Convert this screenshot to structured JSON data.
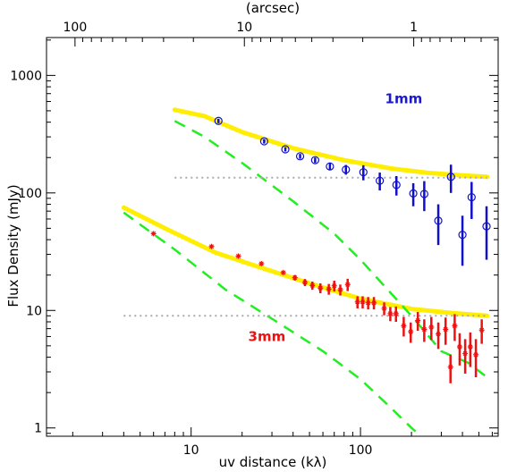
{
  "chart_data": {
    "type": "scatter",
    "title": "",
    "xlabel": "uv distance (kλ)",
    "ylabel": "Flux Density (mJy)",
    "x2label": "(arcsec)",
    "xscale": "log",
    "yscale": "log",
    "xlim": [
      1.4,
      650
    ],
    "ylim": [
      0.85,
      2100
    ],
    "x_ticks": [
      {
        "value": 10,
        "label": "10"
      },
      {
        "value": 100,
        "label": "100"
      }
    ],
    "y_ticks": [
      {
        "value": 1,
        "label": "1"
      },
      {
        "value": 10,
        "label": "10"
      },
      {
        "value": 100,
        "label": "100"
      },
      {
        "value": 1000,
        "label": "1000"
      }
    ],
    "top_ticks": [
      {
        "value": 100,
        "label": "100"
      },
      {
        "value": 10,
        "label": "10"
      },
      {
        "value": 1,
        "label": "1"
      }
    ],
    "annotations": [
      {
        "text": "1mm",
        "x": 180,
        "y": 580,
        "color": "#1a1acc"
      },
      {
        "text": "3mm",
        "x": 28,
        "y": 5.5,
        "color": "#ee1111"
      }
    ],
    "series": [
      {
        "label": "1mm",
        "marker": "open-circle",
        "color": "#1010cc",
        "points": [
          {
            "x": 14.5,
            "y": 410,
            "err": 18
          },
          {
            "x": 27,
            "y": 275,
            "err": 12
          },
          {
            "x": 36,
            "y": 235,
            "err": 10
          },
          {
            "x": 44,
            "y": 205,
            "err": 10
          },
          {
            "x": 54,
            "y": 190,
            "err": 10
          },
          {
            "x": 66,
            "y": 168,
            "err": 12
          },
          {
            "x": 82,
            "y": 158,
            "err": 15
          },
          {
            "x": 104,
            "y": 150,
            "err": 22
          },
          {
            "x": 130,
            "y": 127,
            "err": 22
          },
          {
            "x": 163,
            "y": 117,
            "err": 22
          },
          {
            "x": 205,
            "y": 99,
            "err": 22
          },
          {
            "x": 238,
            "y": 98,
            "err": 28
          },
          {
            "x": 288,
            "y": 58,
            "err": 22
          },
          {
            "x": 342,
            "y": 137,
            "err": 37
          },
          {
            "x": 400,
            "y": 44,
            "err": 20
          },
          {
            "x": 453,
            "y": 92,
            "err": 32
          },
          {
            "x": 555,
            "y": 52,
            "err": 25
          }
        ]
      },
      {
        "label": "3mm",
        "marker": "asterisk",
        "color": "#ee1111",
        "points": [
          {
            "x": 6,
            "y": 45,
            "err": 0
          },
          {
            "x": 13.2,
            "y": 35,
            "err": 0
          },
          {
            "x": 19,
            "y": 29,
            "err": 0
          },
          {
            "x": 26,
            "y": 25,
            "err": 0
          },
          {
            "x": 35,
            "y": 21,
            "err": 0
          },
          {
            "x": 41,
            "y": 19,
            "err": 1
          },
          {
            "x": 47,
            "y": 17.3,
            "err": 1.2
          },
          {
            "x": 52,
            "y": 16.3,
            "err": 1.3
          },
          {
            "x": 58,
            "y": 15.5,
            "err": 1.5
          },
          {
            "x": 65,
            "y": 15.2,
            "err": 1.6
          },
          {
            "x": 70,
            "y": 16.2,
            "err": 1.7
          },
          {
            "x": 76,
            "y": 15,
            "err": 1.6
          },
          {
            "x": 84,
            "y": 16.6,
            "err": 2
          },
          {
            "x": 96,
            "y": 11.8,
            "err": 1.4
          },
          {
            "x": 103,
            "y": 11.8,
            "err": 1.4
          },
          {
            "x": 111,
            "y": 11.6,
            "err": 1.4
          },
          {
            "x": 120,
            "y": 11.6,
            "err": 1.4
          },
          {
            "x": 138,
            "y": 10.4,
            "err": 1.3
          },
          {
            "x": 150,
            "y": 9.4,
            "err": 1.3
          },
          {
            "x": 162,
            "y": 9.4,
            "err": 1.4
          },
          {
            "x": 180,
            "y": 7.4,
            "err": 1.4
          },
          {
            "x": 198,
            "y": 6.6,
            "err": 1.3
          },
          {
            "x": 218,
            "y": 8.2,
            "err": 1.5
          },
          {
            "x": 238,
            "y": 6.9,
            "err": 1.5
          },
          {
            "x": 262,
            "y": 7.2,
            "err": 1.6
          },
          {
            "x": 288,
            "y": 6.3,
            "err": 1.6
          },
          {
            "x": 318,
            "y": 6.9,
            "err": 1.8
          },
          {
            "x": 340,
            "y": 3.3,
            "err": 0.9
          },
          {
            "x": 360,
            "y": 7.4,
            "err": 1.9
          },
          {
            "x": 385,
            "y": 4.9,
            "err": 1.5
          },
          {
            "x": 415,
            "y": 4.3,
            "err": 1.4
          },
          {
            "x": 445,
            "y": 4.9,
            "err": 1.6
          },
          {
            "x": 480,
            "y": 4.2,
            "err": 1.5
          },
          {
            "x": 520,
            "y": 6.8,
            "err": 1.6
          }
        ]
      }
    ],
    "lines": [
      {
        "label": "1mm model",
        "style": "solid-thick",
        "color": "#ffee00",
        "points": [
          [
            8,
            510
          ],
          [
            12,
            450
          ],
          [
            20,
            330
          ],
          [
            40,
            240
          ],
          [
            80,
            190
          ],
          [
            150,
            162
          ],
          [
            250,
            148
          ],
          [
            400,
            141
          ],
          [
            560,
            137
          ]
        ]
      },
      {
        "label": "3mm model",
        "style": "solid-thick",
        "color": "#ffee00",
        "points": [
          [
            4,
            75
          ],
          [
            7,
            50
          ],
          [
            14,
            31
          ],
          [
            25,
            23.5
          ],
          [
            50,
            17
          ],
          [
            100,
            12.6
          ],
          [
            200,
            10.3
          ],
          [
            350,
            9.5
          ],
          [
            560,
            9
          ]
        ]
      },
      {
        "label": "1mm extended component",
        "style": "dashed",
        "color": "#22ee22",
        "points": [
          [
            8,
            410
          ],
          [
            12,
            300
          ],
          [
            20,
            180
          ],
          [
            40,
            85
          ],
          [
            70,
            45
          ],
          [
            100,
            27
          ],
          [
            200,
            9
          ],
          [
            300,
            4.5
          ],
          [
            430,
            3.6
          ],
          [
            560,
            2.7
          ]
        ]
      },
      {
        "label": "3mm extended component",
        "style": "dashed",
        "color": "#22ee22",
        "points": [
          [
            4,
            68
          ],
          [
            8,
            33
          ],
          [
            16,
            15
          ],
          [
            30,
            8.5
          ],
          [
            60,
            4.5
          ],
          [
            100,
            2.6
          ],
          [
            150,
            1.5
          ],
          [
            200,
            1
          ],
          [
            240,
            0.8
          ]
        ]
      },
      {
        "label": "1mm compact level",
        "style": "dotted",
        "color": "#aaaaaa",
        "points": [
          [
            8,
            135
          ],
          [
            560,
            135
          ]
        ]
      },
      {
        "label": "3mm compact level",
        "style": "dotted",
        "color": "#aaaaaa",
        "points": [
          [
            4,
            9
          ],
          [
            560,
            9
          ]
        ]
      }
    ]
  }
}
